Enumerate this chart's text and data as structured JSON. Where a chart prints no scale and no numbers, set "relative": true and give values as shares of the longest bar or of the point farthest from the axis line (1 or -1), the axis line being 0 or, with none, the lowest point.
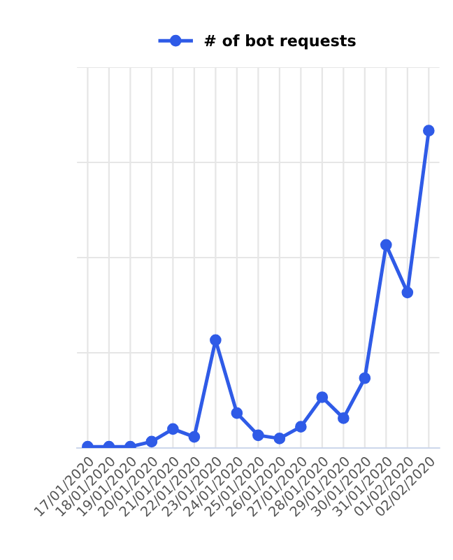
{
  "chart_data": {
    "type": "line",
    "relative": true,
    "categories": [
      "17/01/2020",
      "18/01/2020",
      "19/01/2020",
      "20/01/2020",
      "21/01/2020",
      "22/01/2020",
      "23/01/2020",
      "24/01/2020",
      "25/01/2020",
      "26/01/2020",
      "27/01/2020",
      "28/01/2020",
      "29/01/2020",
      "30/01/2020",
      "31/01/2020",
      "01/02/2020",
      "02/02/2020"
    ],
    "series": [
      {
        "name": "# of bot requests",
        "color": "#2f5be7",
        "values": [
          0.004,
          0.004,
          0.004,
          0.02,
          0.06,
          0.035,
          0.34,
          0.11,
          0.04,
          0.03,
          0.067,
          0.16,
          0.094,
          0.22,
          0.64,
          0.49,
          1
        ]
      }
    ],
    "legend": "top",
    "grid": true,
    "marker": "circle",
    "line_style": "solid",
    "tick_labels": "x"
  }
}
